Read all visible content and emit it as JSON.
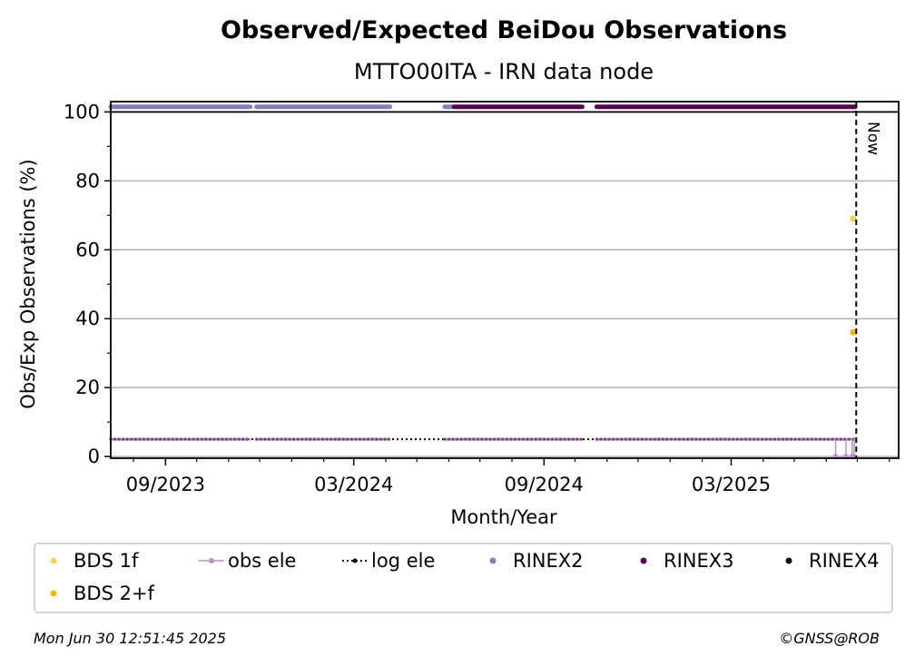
{
  "chart_data": {
    "type": "scatter",
    "title": "Observed/Expected BeiDou Observations",
    "subtitle": "MTTO00ITA - IRN data node",
    "xlabel": "Month/Year",
    "ylabel": "Obs/Exp Observations (%)",
    "ylim": [
      -0.5,
      103
    ],
    "xlim": [
      "2023-07-10",
      "2025-08-10"
    ],
    "yticks": [
      0,
      20,
      40,
      60,
      80,
      100
    ],
    "xticks": [
      {
        "date": "2023-09-01",
        "label": "09/2023"
      },
      {
        "date": "2024-03-01",
        "label": "03/2024"
      },
      {
        "date": "2024-09-01",
        "label": "09/2024"
      },
      {
        "date": "2025-03-01",
        "label": "03/2025"
      }
    ],
    "grid": "horizontal",
    "now": {
      "date": "2025-06-30",
      "label": "Now"
    },
    "series": [
      {
        "name": "BDS 1f",
        "color": "#ffd24d",
        "points": [
          {
            "x": "2025-06-27",
            "y": 69
          }
        ]
      },
      {
        "name": "BDS 2+f",
        "color": "#ffb300",
        "points": [
          {
            "x": "2025-06-27",
            "y": 36
          }
        ]
      },
      {
        "name": "obs ele",
        "color": "#c28ccc",
        "value": 5,
        "segments": [
          [
            "2023-07-10",
            "2023-11-22"
          ],
          [
            "2023-11-28",
            "2024-04-05"
          ],
          [
            "2024-05-28",
            "2024-10-08"
          ],
          [
            "2024-10-22",
            "2025-06-29"
          ]
        ],
        "dips": [
          [
            "2025-06-10",
            "2025-06-20"
          ],
          [
            "2025-06-26",
            "2025-06-28"
          ]
        ]
      },
      {
        "name": "log ele",
        "color": "#000000",
        "value": 5,
        "segments": [
          [
            "2023-07-10",
            "2025-06-29"
          ]
        ]
      },
      {
        "name": "RINEX2",
        "color": "#8080c0",
        "value": 101.5,
        "segments": [
          [
            "2023-07-10",
            "2023-11-22"
          ],
          [
            "2023-11-28",
            "2024-04-05"
          ],
          [
            "2024-05-28",
            "2024-06-06"
          ]
        ]
      },
      {
        "name": "RINEX3",
        "color": "#5c0050",
        "value": 101.5,
        "segments": [
          [
            "2024-06-06",
            "2024-10-08"
          ],
          [
            "2024-10-22",
            "2025-06-29"
          ]
        ]
      },
      {
        "name": "RINEX4",
        "color": "#1a0010",
        "value": 101.5,
        "segments": []
      }
    ],
    "legend": {
      "placement": "bottom",
      "columns": 6
    }
  },
  "legend_items": [
    {
      "label": "BDS 1f",
      "color": "#ffd24d",
      "style": "dot"
    },
    {
      "label": "obs ele",
      "color": "#c28ccc",
      "style": "line-dot"
    },
    {
      "label": "log ele",
      "color": "#000000",
      "style": "dotted-dot"
    },
    {
      "label": "RINEX2",
      "color": "#8080c0",
      "style": "dot"
    },
    {
      "label": "RINEX3",
      "color": "#5c0050",
      "style": "dot"
    },
    {
      "label": "RINEX4",
      "color": "#1a0010",
      "style": "dot"
    },
    {
      "label": "BDS 2+f",
      "color": "#ffb300",
      "style": "dot"
    }
  ],
  "footer": {
    "timestamp": "Mon Jun 30 12:51:45 2025",
    "credit": "©GNSS@ROB"
  }
}
